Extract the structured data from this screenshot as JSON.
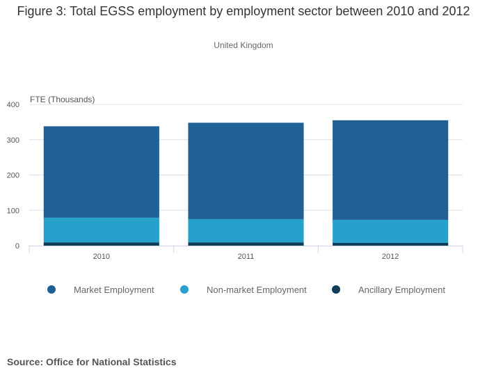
{
  "chart_data": {
    "type": "bar",
    "stacked": true,
    "title": "Figure 3: Total EGSS employment by employment sector between 2010 and 2012",
    "subtitle": "United Kingdom",
    "ylabel": "FTE (Thousands)",
    "xlabel": "",
    "ylim": [
      0,
      400
    ],
    "yticks": [
      "0",
      "100",
      "200",
      "300",
      "400"
    ],
    "categories": [
      "2010",
      "2011",
      "2012"
    ],
    "grid": true,
    "legend_position": "bottom",
    "series": [
      {
        "name": "Ancillary Employment",
        "color": "#0e3d59",
        "values": [
          9,
          9,
          8
        ]
      },
      {
        "name": "Non-market Employment",
        "color": "#27a0cc",
        "values": [
          70,
          66,
          65
        ]
      },
      {
        "name": "Market Employment",
        "color": "#206095",
        "values": [
          259,
          273,
          282
        ]
      }
    ],
    "legend_order": [
      "Market Employment",
      "Non-market Employment",
      "Ancillary Employment"
    ]
  },
  "source": "Source: Office for National Statistics"
}
